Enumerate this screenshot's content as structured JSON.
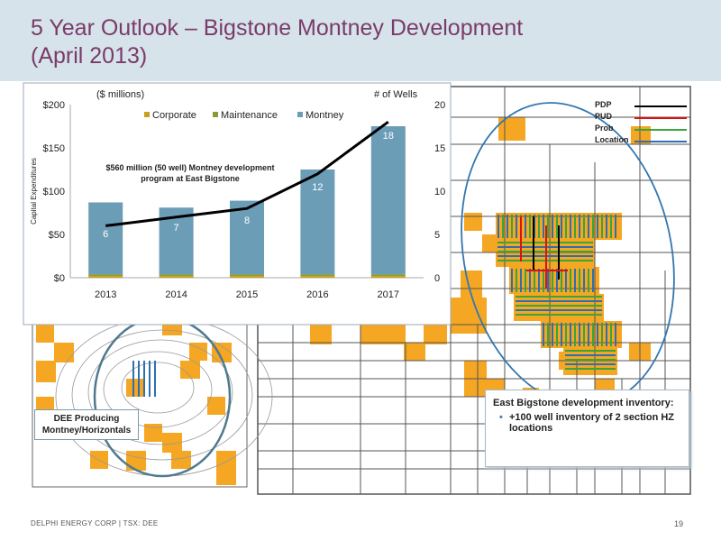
{
  "slide": {
    "title_line1": "5 Year Outlook – Bigstone Montney Development",
    "title_line2": "(April 2013)",
    "footer": "DELPHI ENERGY CORP | TSX: DEE",
    "page_number": "19"
  },
  "map_legend": [
    {
      "label": "PDP",
      "color": "#000000"
    },
    {
      "label": "PUD",
      "color": "#e01010"
    },
    {
      "label": "Prob",
      "color": "#3aa53a"
    },
    {
      "label": "Location",
      "color": "#2f6fb0"
    }
  ],
  "inventory": {
    "heading": "East Bigstone development inventory:",
    "bullet": "+100 well inventory of 2 section HZ locations"
  },
  "dee_label": {
    "line1": "DEE Producing",
    "line2": "Montney/Horizontals"
  },
  "colors": {
    "corporate": "#c9a01c",
    "maintenance": "#8a9a3a",
    "montney": "#6b9db7",
    "wells_line": "#000000",
    "title": "#7a3b6a",
    "map_orange": "#f5a623"
  },
  "chart_data": {
    "type": "bar",
    "categories": [
      "2013",
      "2014",
      "2015",
      "2016",
      "2017"
    ],
    "series": [
      {
        "name": "Corporate",
        "values": [
          2,
          2,
          2,
          2,
          2
        ]
      },
      {
        "name": "Maintenance",
        "values": [
          2,
          2,
          2,
          2,
          2
        ]
      },
      {
        "name": "Montney",
        "values": [
          83,
          77,
          85,
          121,
          171
        ]
      }
    ],
    "line_series": {
      "values": [
        6,
        7,
        8,
        12,
        18
      ]
    },
    "bar_labels": [
      "6",
      "7",
      "8",
      "12",
      "18"
    ],
    "ylabel": "Capital Expenditures",
    "y_unit_label": "($ millions)",
    "y2_unit_label": "# of Wells",
    "ylim": [
      0,
      200
    ],
    "y_ticks": [
      "$0",
      "$50",
      "$100",
      "$150",
      "$200"
    ],
    "y_tick_values": [
      0,
      50,
      100,
      150,
      200
    ],
    "y2lim": [
      0,
      20
    ],
    "y2_ticks": [
      "0",
      "5",
      "10",
      "15",
      "20"
    ],
    "y2_tick_values": [
      0,
      5,
      10,
      15,
      20
    ],
    "annotation_line1": "$560 million (50 well) Montney development",
    "annotation_line2": "program at East Bigstone",
    "legend_position": "top",
    "grid": false
  }
}
